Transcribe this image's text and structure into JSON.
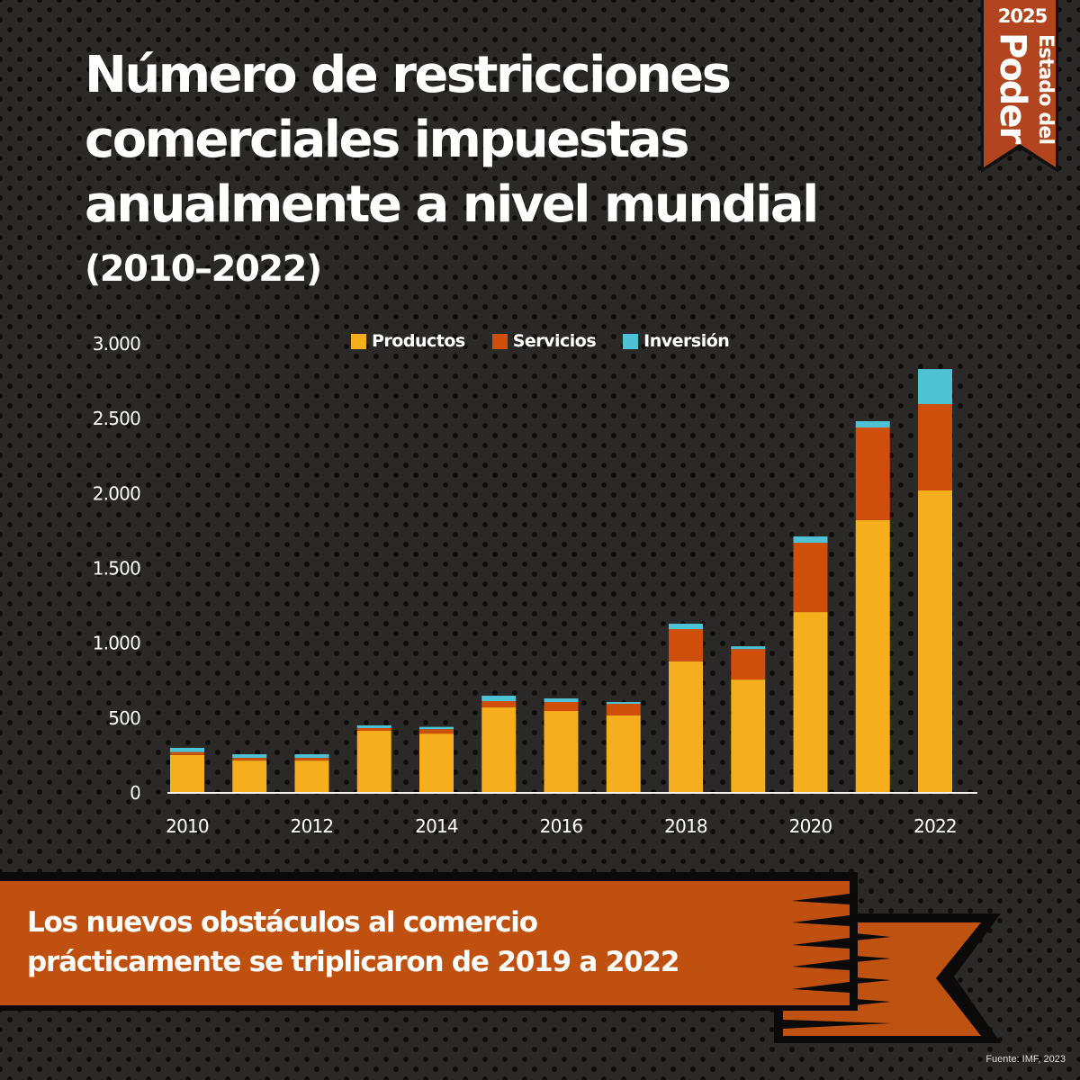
{
  "header": {
    "title": "Número de restricciones comerciales impuestas anualmente a nivel mundial",
    "subtitle": "(2010–2022)"
  },
  "badge": {
    "year": "2025",
    "line1": "Estado del",
    "line2": "Poder",
    "color": "#b2451f"
  },
  "colors": {
    "productos": "#f5ae1c",
    "servicios": "#cf4f0a",
    "inversion": "#4fc3d6",
    "banner": "#c0500f"
  },
  "chart_data": {
    "type": "bar",
    "stacked": true,
    "title": "Número de restricciones comerciales impuestas anualmente a nivel mundial (2010–2022)",
    "xlabel": "",
    "ylabel": "",
    "x": [
      2010,
      2011,
      2012,
      2013,
      2014,
      2015,
      2016,
      2017,
      2018,
      2019,
      2020,
      2021,
      2022
    ],
    "x_tick_labels": [
      "2010",
      "2012",
      "2014",
      "2016",
      "2018",
      "2020",
      "2022"
    ],
    "y_ticks": [
      0,
      500,
      1000,
      1500,
      2000,
      2500,
      3000
    ],
    "y_tick_labels": [
      "0",
      "500",
      "1.000",
      "1.500",
      "2.000",
      "2.500",
      "3.000"
    ],
    "ylim": [
      0,
      3000
    ],
    "grid": false,
    "legend_position": "top",
    "series": [
      {
        "name": "Productos",
        "color": "#f5ae1c",
        "values": [
          247,
          210,
          210,
          409,
          390,
          565,
          541,
          511,
          872,
          751,
          1202,
          1816,
          2014
        ]
      },
      {
        "name": "Servicios",
        "color": "#cf4f0a",
        "values": [
          20,
          18,
          18,
          18,
          30,
          42,
          60,
          78,
          216,
          204,
          463,
          619,
          577
        ]
      },
      {
        "name": "Inversión",
        "color": "#4fc3d6",
        "values": [
          28,
          24,
          24,
          18,
          15,
          36,
          24,
          12,
          36,
          18,
          42,
          42,
          234
        ]
      }
    ]
  },
  "legend": {
    "items": [
      {
        "label": "Productos"
      },
      {
        "label": "Servicios"
      },
      {
        "label": "Inversión"
      }
    ]
  },
  "banner": {
    "line1": "Los nuevos obstáculos al comercio",
    "line2": "prácticamente se triplicaron de 2019 a 2022"
  },
  "footer": {
    "source": "Fuente: IMF, 2023"
  }
}
